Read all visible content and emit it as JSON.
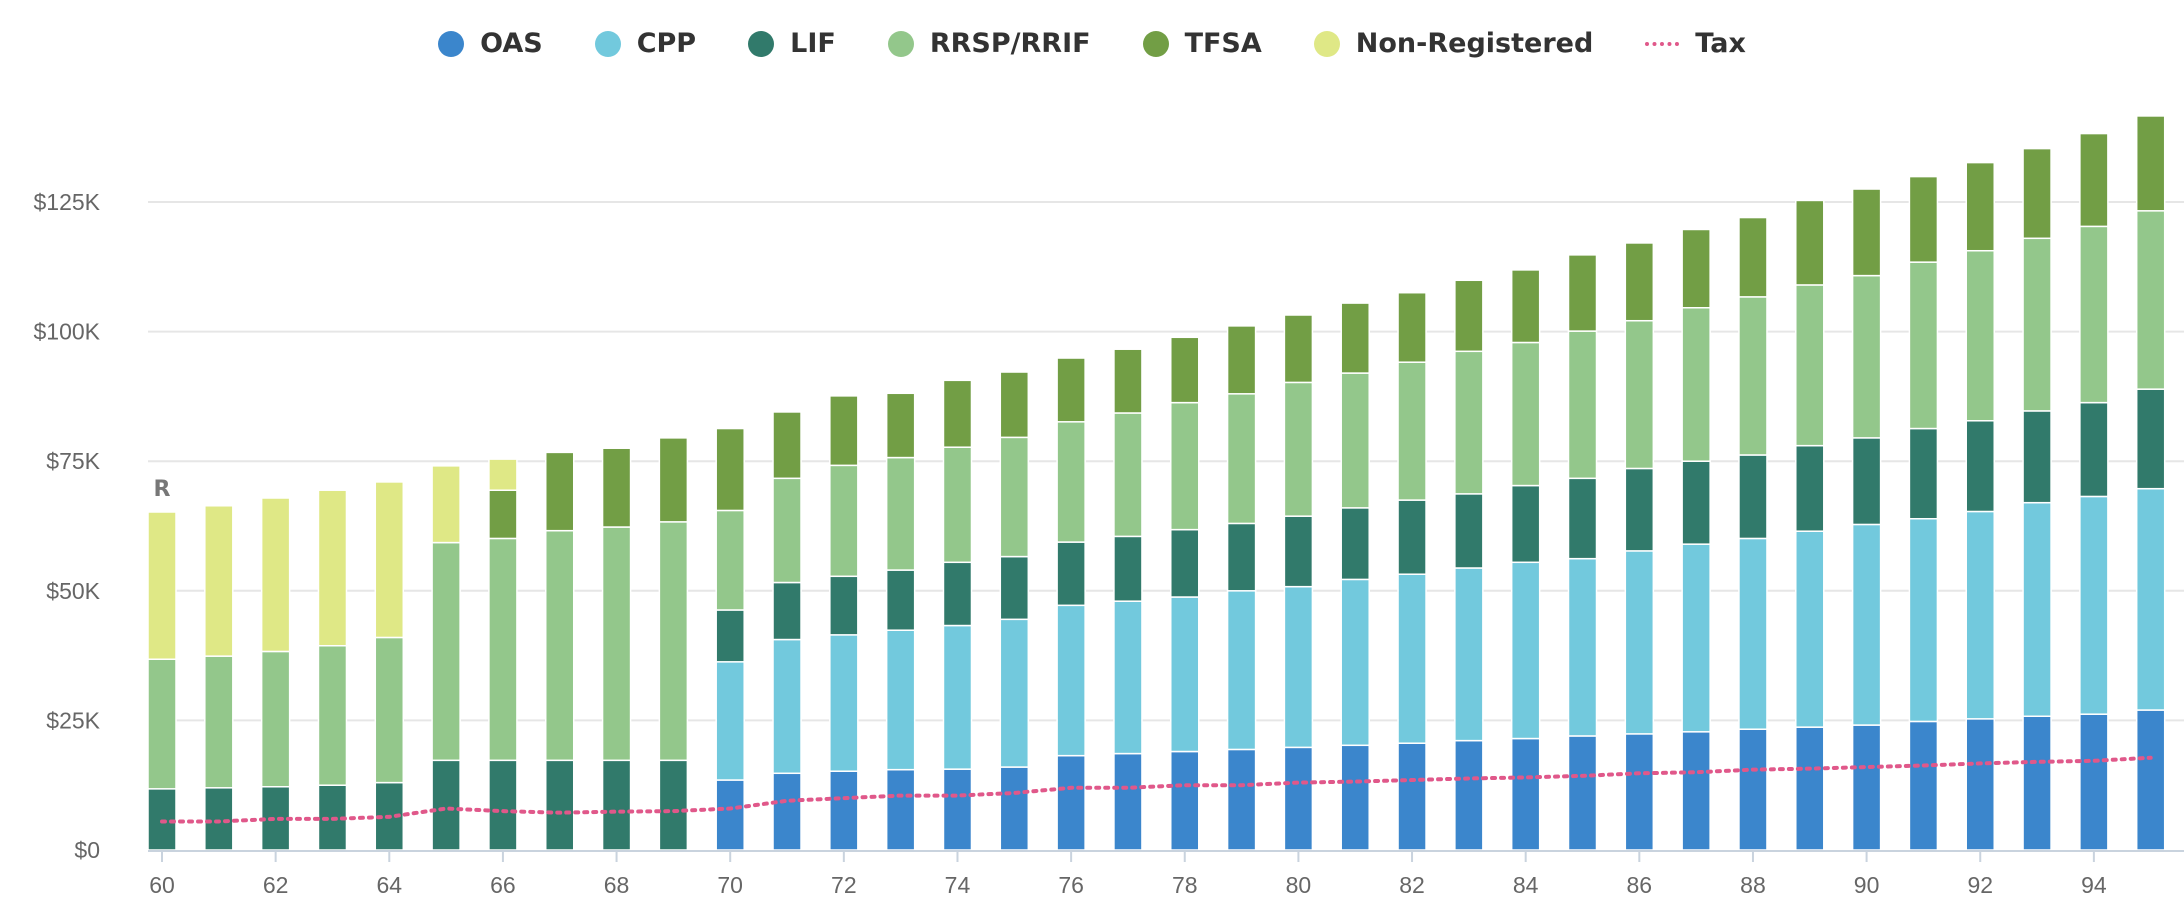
{
  "chart_data": {
    "type": "bar",
    "stacked": true,
    "categories": [
      60,
      61,
      62,
      63,
      64,
      65,
      66,
      67,
      68,
      69,
      70,
      71,
      72,
      73,
      74,
      75,
      76,
      77,
      78,
      79,
      80,
      81,
      82,
      83,
      84,
      85,
      86,
      87,
      88,
      89,
      90,
      91,
      92,
      93,
      94,
      95
    ],
    "x_tick_labels": [
      "60",
      "62",
      "64",
      "66",
      "68",
      "70",
      "72",
      "74",
      "76",
      "78",
      "80",
      "82",
      "84",
      "86",
      "88",
      "90",
      "92",
      "94"
    ],
    "y_tick_labels": [
      "$0",
      "$25K",
      "$50K",
      "$75K",
      "$100K",
      "$125K"
    ],
    "y_ticks": [
      0,
      25000,
      50000,
      75000,
      100000,
      125000
    ],
    "ylim": [
      0,
      145000
    ],
    "grid": true,
    "legend_position": "top",
    "annotation": "R",
    "series": [
      {
        "name": "OAS",
        "color": "#3b86cc",
        "values": [
          0,
          0,
          0,
          0,
          0,
          0,
          0,
          0,
          0,
          0,
          13500,
          14800,
          15200,
          15500,
          15600,
          16000,
          18200,
          18600,
          19000,
          19400,
          19800,
          20200,
          20600,
          21100,
          21500,
          22000,
          22400,
          22800,
          23300,
          23700,
          24100,
          24800,
          25300,
          25800,
          26200,
          27000
        ]
      },
      {
        "name": "CPP",
        "color": "#72c9dd",
        "values": [
          0,
          0,
          0,
          0,
          0,
          0,
          0,
          0,
          0,
          0,
          22800,
          25800,
          26300,
          26900,
          27700,
          28500,
          29000,
          29400,
          29800,
          30600,
          31000,
          32000,
          32600,
          33300,
          34000,
          34200,
          35300,
          36200,
          36800,
          37800,
          38700,
          39100,
          40000,
          41200,
          42000,
          42700
        ]
      },
      {
        "name": "LIF",
        "color": "#317a6b",
        "values": [
          11800,
          12000,
          12200,
          12500,
          13000,
          17300,
          17300,
          17300,
          17300,
          17300,
          10000,
          11000,
          11300,
          11600,
          12200,
          12100,
          12200,
          12500,
          13000,
          13000,
          13600,
          13800,
          14300,
          14300,
          14800,
          15500,
          15900,
          16000,
          16100,
          16500,
          16700,
          17400,
          17500,
          17700,
          18100,
          19200
        ]
      },
      {
        "name": "RRSP/RRIF",
        "color": "#93c78b",
        "values": [
          25000,
          25400,
          26100,
          26900,
          28000,
          42000,
          42800,
          44300,
          45000,
          46000,
          19200,
          20100,
          21400,
          21700,
          22200,
          23000,
          23200,
          23800,
          24500,
          25000,
          25800,
          26000,
          26600,
          27500,
          27600,
          28400,
          28500,
          29600,
          30500,
          31000,
          31300,
          32100,
          32800,
          33300,
          34000,
          34400
        ]
      },
      {
        "name": "TFSA",
        "color": "#729e45",
        "values": [
          0,
          0,
          0,
          0,
          0,
          0,
          9300,
          15100,
          15200,
          16200,
          15800,
          12800,
          13400,
          12400,
          12900,
          12600,
          12300,
          12300,
          12600,
          13100,
          13000,
          13500,
          13400,
          13700,
          14000,
          14700,
          15000,
          15100,
          15300,
          16300,
          16700,
          16500,
          17000,
          17300,
          17900,
          18300
        ]
      },
      {
        "name": "Non-Registered",
        "color": "#dfe886",
        "values": [
          28400,
          29000,
          29600,
          30000,
          30000,
          14800,
          6000,
          0,
          0,
          0,
          0,
          0,
          0,
          0,
          0,
          0,
          0,
          0,
          0,
          0,
          0,
          0,
          0,
          0,
          0,
          0,
          0,
          0,
          0,
          0,
          0,
          0,
          0,
          0,
          0,
          0
        ]
      },
      {
        "name": "Tax",
        "color": "#e0588a",
        "type": "line",
        "values": [
          5500,
          5500,
          6000,
          6000,
          6400,
          8000,
          7500,
          7200,
          7400,
          7500,
          8000,
          9500,
          10000,
          10500,
          10500,
          11000,
          12000,
          12000,
          12500,
          12500,
          13000,
          13200,
          13500,
          13800,
          14000,
          14300,
          14800,
          15000,
          15500,
          15700,
          16000,
          16300,
          16700,
          17000,
          17200,
          17800
        ]
      }
    ]
  }
}
